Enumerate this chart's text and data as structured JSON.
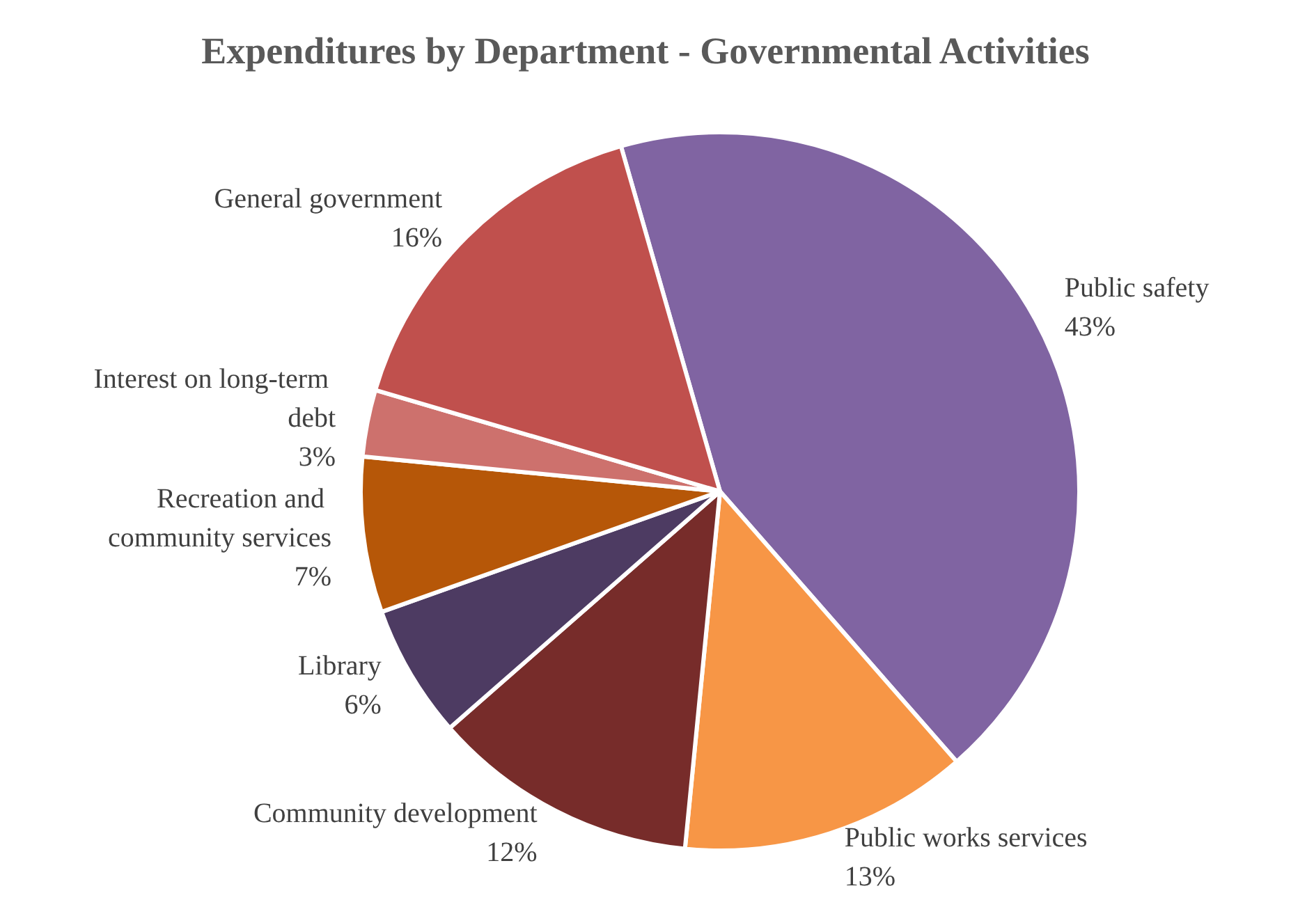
{
  "chart_data": {
    "type": "pie",
    "title": "Expenditures by Department - Governmental Activities",
    "categories": [
      "Public safety",
      "Public works services",
      "Community development",
      "Library",
      "Recreation and community services",
      "Interest on long-term debt",
      "General government"
    ],
    "values": [
      43,
      13,
      12,
      6,
      7,
      3,
      16
    ],
    "colors": [
      "#8064a2",
      "#f79646",
      "#772c2a",
      "#4d3b62",
      "#b65708",
      "#cd716d",
      "#c0504d"
    ],
    "value_labels": [
      "43%",
      "13%",
      "12%",
      "6%",
      "7%",
      "3%",
      "16%"
    ]
  }
}
